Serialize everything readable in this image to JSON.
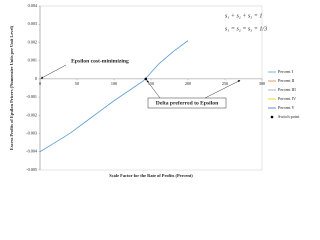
{
  "chart_data": {
    "type": "line",
    "xlabel": "Scale Factor for the Rate of Profits (Percent)",
    "ylabel": "Excess Profits of Epsilon Pricers (Numeraire Units per Unit Level)",
    "x": [
      0,
      20,
      40,
      60,
      80,
      100,
      120,
      140,
      160,
      180,
      200
    ],
    "series": [
      {
        "name": "Percent I",
        "color": "#5b9bd5",
        "values": [
          -0.004,
          -0.0035,
          -0.003,
          -0.0024,
          -0.0018,
          -0.0012,
          -0.00065,
          -0.0001,
          0.0008,
          0.0015,
          0.0021
        ]
      },
      {
        "name": "Percent II",
        "color": "#ed7d31",
        "values": [
          null,
          null,
          null,
          null,
          null,
          null,
          null,
          null,
          null,
          null,
          null
        ]
      },
      {
        "name": "Percent III",
        "color": "#a5a5a5",
        "values": [
          null,
          null,
          null,
          null,
          null,
          null,
          null,
          null,
          null,
          null,
          null
        ]
      },
      {
        "name": "Percent IV",
        "color": "#ffc000",
        "values": [
          null,
          null,
          null,
          null,
          null,
          null,
          null,
          null,
          null,
          null,
          null
        ]
      },
      {
        "name": "Percent V",
        "color": "#4472c4",
        "values": [
          null,
          null,
          null,
          null,
          null,
          null,
          null,
          null,
          null,
          null,
          null
        ]
      }
    ],
    "switch_point": {
      "name": "Switch point",
      "x": 143,
      "y": 0,
      "color": "#000000"
    },
    "xlim": [
      0,
      300
    ],
    "xticks": [
      0,
      50,
      100,
      150,
      200,
      250,
      300
    ],
    "ylim": [
      -0.005,
      0.004
    ],
    "yticks": [
      -0.005,
      -0.004,
      -0.003,
      -0.002,
      -0.001,
      0,
      0.001,
      0.002,
      0.003,
      0.004
    ],
    "annotations": [
      "Epsilon cost-minimizing",
      "Delta preferred to Epsilon"
    ],
    "equations": [
      "s₁ + s₂ + s₃ = 1",
      "s₁ = s₂ = s₃ = 1/3"
    ],
    "legend_position": "right"
  }
}
